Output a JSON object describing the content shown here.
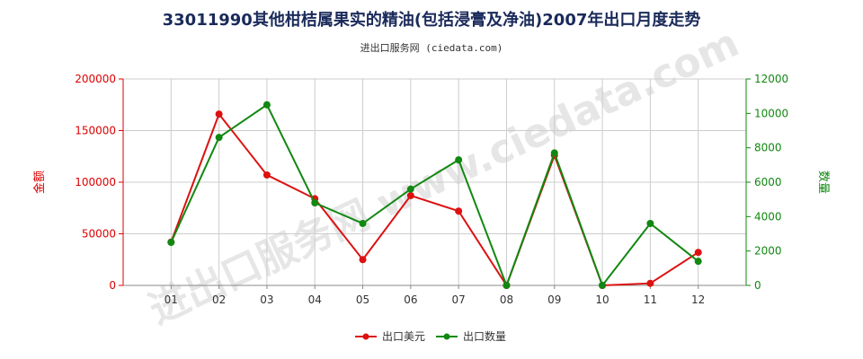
{
  "title": "33011990其他柑桔属果实的精油(包括浸膏及净油)2007年出口月度走势",
  "subtitle": "进出口服务网 (ciedata.com)",
  "watermark": "进出口服务网 www.ciedata.com",
  "chart_data": {
    "type": "line",
    "categories": [
      "01",
      "02",
      "03",
      "04",
      "05",
      "06",
      "07",
      "08",
      "09",
      "10",
      "11",
      "12"
    ],
    "y_left": {
      "label": "金额",
      "min": 0,
      "max": 200000,
      "ticks": [
        0,
        50000,
        100000,
        150000,
        200000
      ],
      "color": "#dd0000"
    },
    "y_right": {
      "label": "数量",
      "min": 0,
      "max": 12000,
      "ticks": [
        0,
        2000,
        4000,
        6000,
        8000,
        10000,
        12000
      ],
      "color": "#118811"
    },
    "grid": true,
    "legend_position": "bottom",
    "series": [
      {
        "name": "出口美元",
        "axis": "left",
        "color": "#dd1111",
        "values": [
          42000,
          166000,
          107000,
          84000,
          25000,
          87000,
          72000,
          0,
          126000,
          0,
          2000,
          32000
        ]
      },
      {
        "name": "出口数量",
        "axis": "right",
        "color": "#118811",
        "values": [
          2500,
          8600,
          10500,
          4800,
          3600,
          5600,
          7300,
          0,
          7700,
          0,
          3600,
          1400
        ]
      }
    ]
  }
}
